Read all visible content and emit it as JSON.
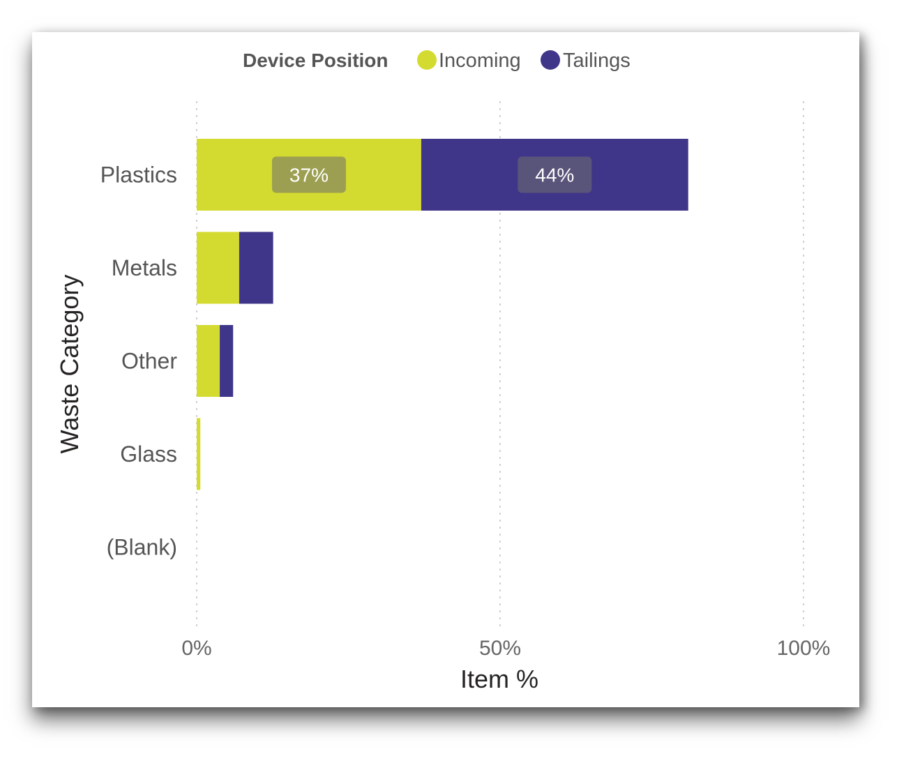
{
  "chart_data": {
    "type": "bar",
    "orientation": "horizontal",
    "stacked": true,
    "title": "",
    "legend": {
      "title": "Device Position",
      "placement": "top-center"
    },
    "xlabel": "Item %",
    "ylabel": "Waste Category",
    "xlim": [
      0,
      100
    ],
    "x_ticks": [
      "0%",
      "50%",
      "100%"
    ],
    "x_tick_values": [
      0,
      50,
      100
    ],
    "grid": "vertical-dotted",
    "categories": [
      "Plastics",
      "Metals",
      "Other",
      "Glass",
      "(Blank)"
    ],
    "series": [
      {
        "name": "Incoming",
        "color": "#d4db30",
        "values": [
          37,
          7,
          3.8,
          0.6,
          0
        ],
        "data_labels": [
          "37%",
          null,
          null,
          null,
          null
        ]
      },
      {
        "name": "Tailings",
        "color": "#403689",
        "values": [
          44,
          5.6,
          2.2,
          0,
          0
        ],
        "data_labels": [
          "44%",
          null,
          null,
          null,
          null
        ]
      }
    ]
  }
}
